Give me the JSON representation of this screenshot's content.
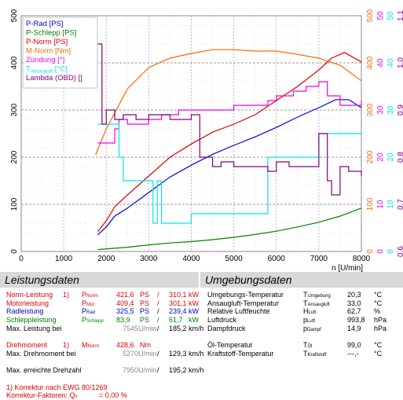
{
  "colors": {
    "p_rad": "#0000dd",
    "p_schlepp": "#008000",
    "p_norm": "#e00000",
    "m_norm": "#ff6600",
    "zuendung": "#ee00ee",
    "temp": "#00e5e5",
    "lambda": "#800080",
    "grid": "#bbbbbb"
  },
  "chart_data": {
    "type": "line",
    "xlabel": "n [U/min]",
    "xlim": [
      0,
      8000
    ],
    "ylim_left": [
      0,
      500
    ],
    "x_ticks": [
      "0",
      "1000",
      "2000",
      "3000",
      "4000",
      "5000",
      "6000",
      "7000",
      "8000"
    ],
    "y_ticks_left": [
      "0",
      "100",
      "200",
      "300",
      "400",
      "500"
    ],
    "right_axes": [
      {
        "ticks": [
          "0",
          "100",
          "200",
          "300",
          "400",
          "500"
        ],
        "color": "#ff6600"
      },
      {
        "ticks": [
          "0",
          "10",
          "20",
          "30",
          "40",
          "50"
        ],
        "color": "#ee00ee"
      },
      {
        "ticks": [
          "0",
          "10",
          "20",
          "30",
          "40",
          "50"
        ],
        "color": "#00e5e5"
      },
      {
        "ticks": [
          "0.6",
          "0.7",
          "0.8",
          "0.9",
          "1.0",
          "1.1"
        ],
        "color": "#800080"
      }
    ],
    "legend": [
      {
        "label": "P-Rad [PS]",
        "color": "#0000dd"
      },
      {
        "label": "P-Schlepp [PS]",
        "color": "#008000"
      },
      {
        "label": "P-Norm [PS]",
        "color": "#e00000"
      },
      {
        "label": "M-Norm [Nm]",
        "color": "#ff6600"
      },
      {
        "label": "Zündung [°]",
        "color": "#ee00ee"
      },
      {
        "label": "T",
        "sub": "Ansaugluft",
        "suffix": " [°C]",
        "color": "#00e5e5"
      },
      {
        "label": "Lambda (OBD) []",
        "color": "#800080"
      }
    ],
    "series": [
      {
        "name": "P-Rad [PS]",
        "color": "#0000dd",
        "x": [
          1800,
          2000,
          2200,
          2500,
          3000,
          3500,
          4000,
          4500,
          5000,
          5500,
          6000,
          6500,
          7000,
          7400,
          7700,
          8000
        ],
        "y": [
          35,
          52,
          75,
          92,
          125,
          158,
          183,
          206,
          225,
          243,
          263,
          285,
          305,
          322,
          322,
          305
        ]
      },
      {
        "name": "P-Schlepp [PS]",
        "color": "#008000",
        "x": [
          1800,
          2500,
          3000,
          3500,
          4000,
          4500,
          5000,
          5500,
          6000,
          6500,
          7000,
          7500,
          8000
        ],
        "y": [
          4,
          9,
          14,
          18,
          21,
          25,
          30,
          36,
          43,
          52,
          62,
          75,
          92
        ]
      },
      {
        "name": "P-Norm [PS]",
        "color": "#e00000",
        "x": [
          1800,
          2000,
          2200,
          2500,
          3000,
          3500,
          4000,
          4500,
          5000,
          5500,
          6000,
          6500,
          7000,
          7300,
          7600,
          8000
        ],
        "y": [
          42,
          65,
          95,
          120,
          160,
          200,
          228,
          253,
          270,
          290,
          320,
          350,
          385,
          410,
          422,
          402
        ]
      },
      {
        "name": "M-Norm [Nm]",
        "color": "#ff6600",
        "x": [
          1750,
          2000,
          2500,
          3000,
          3500,
          4000,
          4500,
          5000,
          5500,
          6000,
          6500,
          7000,
          7500,
          8000
        ],
        "y": [
          205,
          260,
          345,
          390,
          410,
          420,
          428,
          428,
          425,
          425,
          418,
          410,
          395,
          362
        ]
      },
      {
        "name": "Zündung [°]",
        "color": "#ee00ee",
        "x": [
          1800,
          2000,
          2200,
          2300,
          2500,
          2700,
          3000,
          3300,
          3700,
          4000,
          4500,
          5000,
          5500,
          5800,
          6000,
          6400,
          6700,
          6900,
          7000,
          7200,
          7500,
          7800,
          8000
        ],
        "y": [
          23,
          23,
          26,
          28,
          27,
          27,
          28,
          29,
          30,
          30,
          30,
          31,
          31,
          32,
          33,
          34,
          35,
          35,
          36,
          33,
          31,
          31,
          32
        ]
      },
      {
        "name": "T Ansaugluft [°C]",
        "color": "#00e5e5",
        "x": [
          1800,
          2100,
          2300,
          2400,
          2600,
          3000,
          3100,
          3200,
          3300,
          3500,
          3800,
          4000,
          5000,
          5700,
          5800,
          6500,
          6900,
          7000,
          7500,
          8000
        ],
        "y": [
          27,
          27,
          20,
          15,
          15,
          15,
          6,
          15,
          6,
          6,
          6,
          8,
          8,
          8,
          20,
          20,
          20,
          25,
          25,
          25
        ]
      },
      {
        "name": "Lambda (OBD) []",
        "color": "#800080",
        "x": [
          1800,
          1900,
          2000,
          2200,
          2400,
          2700,
          3000,
          3500,
          4000,
          4200,
          4500,
          4700,
          5000,
          5500,
          5800,
          6000,
          6300,
          6700,
          7000,
          7200,
          7300,
          7500,
          7700,
          8000
        ],
        "y": [
          1.04,
          0.87,
          0.9,
          0.88,
          0.89,
          0.88,
          0.89,
          0.88,
          0.89,
          0.8,
          0.78,
          0.79,
          0.78,
          0.78,
          0.77,
          0.79,
          0.78,
          0.78,
          0.85,
          0.75,
          0.72,
          0.78,
          0.77,
          0.76
        ]
      }
    ]
  },
  "left": {
    "title": "Leistungsdaten",
    "rows": [
      {
        "label": "Norm-Leistung",
        "note": "1)",
        "sym": "P",
        "sub": "Norm",
        "v1": "421,6",
        "u1": "PS",
        "slash": "/",
        "v2": "310,1",
        "u2": "kW",
        "cls": "red"
      },
      {
        "label": "Motorleistung",
        "sym": "P",
        "sub": "Mot",
        "v1": "409,4",
        "u1": "PS",
        "slash": "/",
        "v2": "301,1",
        "u2": "kW",
        "cls": "red"
      },
      {
        "label": "Radleistung",
        "sym": "P",
        "sub": "Rad",
        "v1": "325,5",
        "u1": "PS",
        "slash": "/",
        "v2": "239,4",
        "u2": "kW",
        "cls": "blue"
      },
      {
        "label": "Schleppleistung",
        "sym": "P",
        "sub": "Schlepp",
        "v1": "83,9",
        "u1": "PS",
        "slash": "/",
        "v2": "61,7",
        "u2": "kW",
        "cls": "green"
      },
      {
        "label": "Max. Leistung bei",
        "v1": "7545",
        "u1": "U/min",
        "slash": "/",
        "v2": "185,2",
        "u2": "km/h",
        "cls": ""
      },
      {
        "label": "",
        "cls": ""
      },
      {
        "label": "Drehmoment",
        "note": "1)",
        "sym": "M",
        "sub": "Norm",
        "v1": "428,6",
        "u1": "Nm",
        "cls": "red"
      },
      {
        "label": "Max. Drehmoment bei",
        "v1": "5270",
        "u1": "U/min",
        "slash": "/",
        "v2": "129,3",
        "u2": "km/h",
        "cls": ""
      },
      {
        "label": "",
        "cls": ""
      },
      {
        "label": "Max. erreichte Drehzahl",
        "v1": "7950",
        "u1": "U/min",
        "slash": "/",
        "v2": "195,2",
        "u2": "km/h",
        "cls": ""
      },
      {
        "label": "",
        "cls": ""
      },
      {
        "label": "1) Korrektur nach EWG 80/1269",
        "cls": "red"
      },
      {
        "label": "   Korrektur-Faktoren: Q",
        "sub": "v",
        "tail": " =   0,00 %",
        "cls": "red"
      }
    ]
  },
  "right": {
    "title": "Umgebungsdaten",
    "rows": [
      {
        "label": "Umgebungs-Temperatur",
        "sym": "T",
        "sub": "Umgebung",
        "val": "20,3",
        "unit": "°C"
      },
      {
        "label": "Ansaugluft-Temperatur",
        "sym": "T",
        "sub": "Ansaugluft",
        "val": "33,0",
        "unit": "°C"
      },
      {
        "label": "Relative Luftfeuchte",
        "sym": "H",
        "sub": "Luft",
        "val": "62,7",
        "unit": "%"
      },
      {
        "label": "Luftdruck",
        "sym": "p",
        "sub": "Luft",
        "val": "993,8",
        "unit": "hPa"
      },
      {
        "label": "Dampfdruck",
        "sym": "p",
        "sub": "Dampf",
        "val": "14,9",
        "unit": "hPa"
      },
      {
        "label": "",
        "val": "",
        "unit": ""
      },
      {
        "label": "Öl-Temperatur",
        "sym": "T",
        "sub": "Öl",
        "val": "99,0",
        "unit": "°C"
      },
      {
        "label": "Kraftstoff-Temperatur",
        "sym": "T",
        "sub": "Kraftstoff",
        "val": "---,-",
        "unit": "°C"
      }
    ]
  }
}
